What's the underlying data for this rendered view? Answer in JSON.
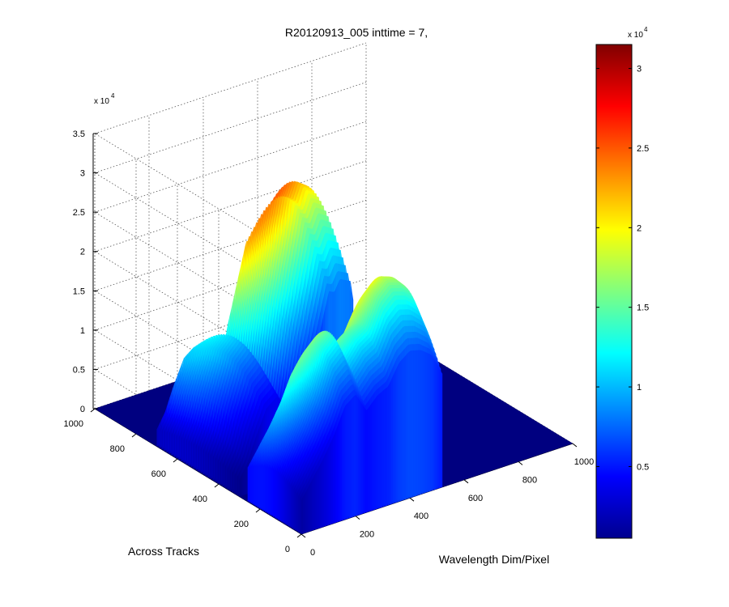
{
  "chart_data": {
    "type": "surface3d",
    "title": "R20120913_005 inttime = 7,",
    "xlabel": "Wavelength Dim/Pixel",
    "ylabel": "Across Tracks",
    "zlabel": "",
    "xlim": [
      0,
      1000
    ],
    "ylim": [
      0,
      1000
    ],
    "zlim": [
      0,
      35000
    ],
    "x_ticks": [
      "0",
      "200",
      "400",
      "600",
      "800",
      "1000"
    ],
    "y_ticks": [
      "0",
      "200",
      "400",
      "600",
      "800",
      "1000"
    ],
    "z_ticks": [
      "0",
      "0.5",
      "1",
      "1.5",
      "2",
      "2.5",
      "3",
      "3.5"
    ],
    "z_exponent_label": "x 10",
    "z_exponent": "4",
    "grid": true,
    "colormap": "jet",
    "colorbar": {
      "range": [
        500,
        31500
      ],
      "ticks": [
        "0.5",
        "1",
        "1.5",
        "2",
        "2.5",
        "3"
      ],
      "exponent_label": "x 10",
      "exponent": "4",
      "location": "right"
    },
    "region1": {
      "x_range": [
        0,
        420
      ],
      "y_range": [
        300,
        700
      ],
      "profile_x": [
        0,
        30,
        60,
        100,
        140,
        180,
        220,
        260,
        300,
        330,
        350,
        370,
        390,
        410,
        420
      ],
      "profile_z": [
        3000,
        5500,
        9500,
        14000,
        15500,
        12000,
        6500,
        17000,
        25000,
        31000,
        30500,
        32500,
        32000,
        31500,
        28000
      ]
    },
    "region2": {
      "x_range": [
        0,
        520
      ],
      "y_range": [
        0,
        260
      ],
      "profile_x": [
        0,
        40,
        80,
        120,
        160,
        200,
        240,
        280,
        320,
        360,
        400,
        440,
        480,
        520
      ],
      "profile_z": [
        6000,
        9000,
        12000,
        15500,
        20000,
        21500,
        18000,
        20000,
        21000,
        24500,
        26000,
        25500,
        24000,
        20000
      ]
    }
  }
}
